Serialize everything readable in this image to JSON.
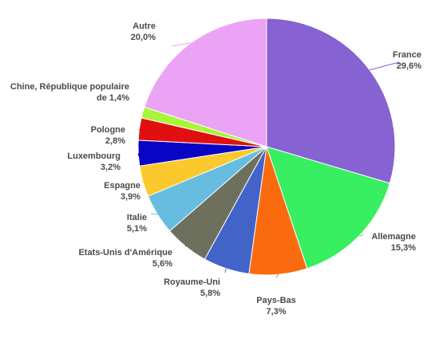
{
  "chart_data": {
    "type": "pie",
    "unit": "%",
    "slices": [
      {
        "label": [
          "France"
        ],
        "value_text": "29,6%",
        "value": 29.6,
        "color": "#8662d2"
      },
      {
        "label": [
          "Allemagne"
        ],
        "value_text": "15,3%",
        "value": 15.3,
        "color": "#37ef61"
      },
      {
        "label": [
          "Pays-Bas"
        ],
        "value_text": "7,3%",
        "value": 7.3,
        "color": "#fa6a0e"
      },
      {
        "label": [
          "Royaume-Uni"
        ],
        "value_text": "5,8%",
        "value": 5.8,
        "color": "#4263c8"
      },
      {
        "label": [
          "Etats-Unis d'Amérique"
        ],
        "value_text": "5,6%",
        "value": 5.6,
        "color": "#6e705e"
      },
      {
        "label": [
          "Italie"
        ],
        "value_text": "5,1%",
        "value": 5.1,
        "color": "#66bde0"
      },
      {
        "label": [
          "Espagne"
        ],
        "value_text": "3,9%",
        "value": 3.9,
        "color": "#fbc92c"
      },
      {
        "label": [
          "Luxembourg"
        ],
        "value_text": "3,2%",
        "value": 3.2,
        "color": "#0a05c4"
      },
      {
        "label": [
          "Pologne"
        ],
        "value_text": "2,8%",
        "value": 2.8,
        "color": "#e01010"
      },
      {
        "label": [
          "Chine, République populaire",
          "de"
        ],
        "value_text": "1,4%",
        "value": 1.4,
        "color": "#a8f53a"
      },
      {
        "label": [
          "Autre"
        ],
        "value_text": "20,0%",
        "value": 20.0,
        "color": "#eba3f5"
      }
    ]
  }
}
